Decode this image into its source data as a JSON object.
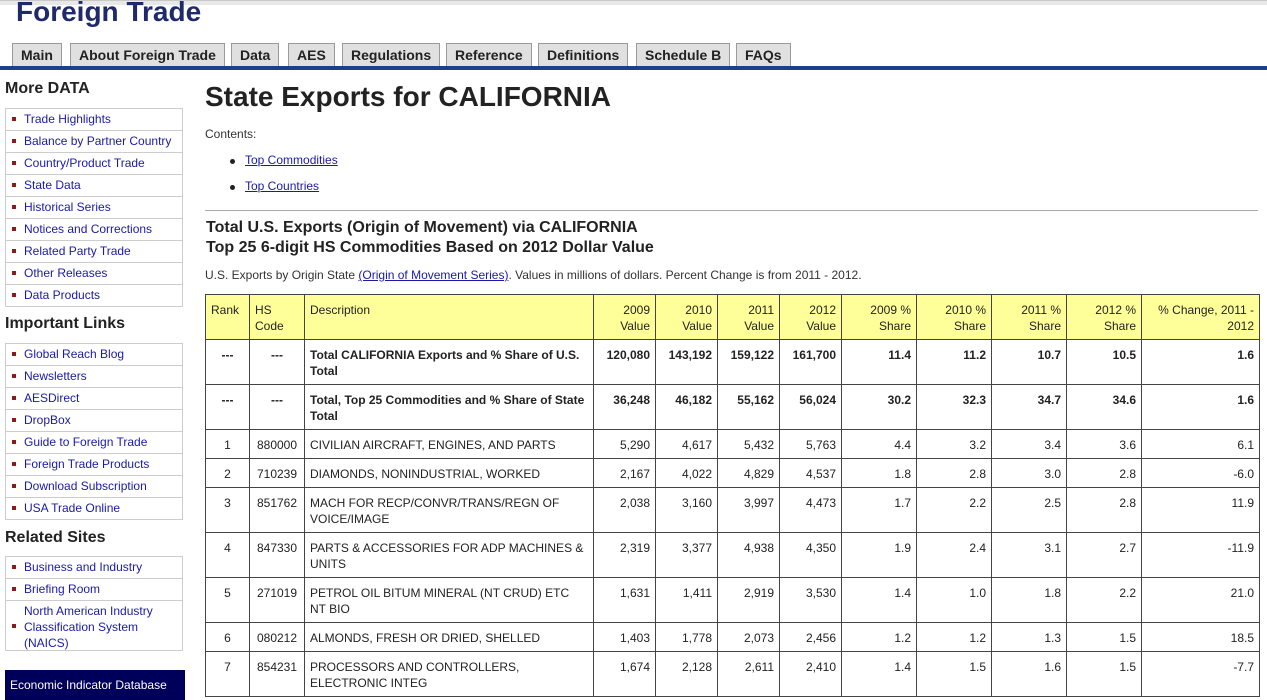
{
  "site": {
    "title": "Foreign Trade",
    "tabs": [
      "Main",
      "About Foreign Trade",
      "Data",
      "AES",
      "Regulations",
      "Reference",
      "Definitions",
      "Schedule B",
      "FAQs"
    ]
  },
  "sidebar": {
    "sections": [
      {
        "heading": "More DATA",
        "items": [
          "Trade Highlights",
          "Balance by Partner Country",
          "Country/Product Trade",
          "State Data",
          "Historical Series",
          "Notices and Corrections",
          "Related Party Trade",
          "Other Releases",
          "Data Products"
        ]
      },
      {
        "heading": "Important Links",
        "items": [
          "Global Reach Blog",
          "Newsletters",
          "AESDirect",
          "DropBox",
          "Guide to Foreign Trade",
          "Foreign Trade Products",
          "Download Subscription",
          "USA Trade Online"
        ]
      },
      {
        "heading": "Related Sites",
        "items": [
          "Business and Industry",
          "Briefing Room",
          "North American Industry Classification System (NAICS)"
        ]
      }
    ],
    "econ_box": "Economic Indicator Database"
  },
  "main": {
    "title": "State Exports for CALIFORNIA",
    "contents_label": "Contents:",
    "toc": [
      "Top Commodities",
      "Top Countries"
    ],
    "section_title_line1": "Total U.S. Exports (Origin of Movement) via CALIFORNIA",
    "section_title_line2": "Top 25 6-digit HS Commodities Based on 2012 Dollar Value",
    "subtext_before": "U.S. Exports by Origin State ",
    "subtext_link": "(Origin of Movement Series)",
    "subtext_after": ". Values in millions of dollars. Percent Change is from 2011 - 2012."
  },
  "table": {
    "headers": [
      "Rank",
      "HS Code",
      "Description",
      "2009 Value",
      "2010 Value",
      "2011 Value",
      "2012 Value",
      "2009 % Share",
      "2010 % Share",
      "2011 % Share",
      "2012 % Share",
      "% Change, 2011 - 2012"
    ],
    "rows": [
      [
        "---",
        "---",
        "Total CALIFORNIA Exports and % Share of U.S. Total",
        "120,080",
        "143,192",
        "159,122",
        "161,700",
        "11.4",
        "11.2",
        "10.7",
        "10.5",
        "1.6"
      ],
      [
        "---",
        "---",
        "Total, Top 25 Commodities and % Share of State Total",
        "36,248",
        "46,182",
        "55,162",
        "56,024",
        "30.2",
        "32.3",
        "34.7",
        "34.6",
        "1.6"
      ],
      [
        "1",
        "880000",
        "CIVILIAN AIRCRAFT, ENGINES, AND PARTS",
        "5,290",
        "4,617",
        "5,432",
        "5,763",
        "4.4",
        "3.2",
        "3.4",
        "3.6",
        "6.1"
      ],
      [
        "2",
        "710239",
        "DIAMONDS, NONINDUSTRIAL, WORKED",
        "2,167",
        "4,022",
        "4,829",
        "4,537",
        "1.8",
        "2.8",
        "3.0",
        "2.8",
        "-6.0"
      ],
      [
        "3",
        "851762",
        "MACH FOR RECP/CONVR/TRANS/REGN OF VOICE/IMAGE",
        "2,038",
        "3,160",
        "3,997",
        "4,473",
        "1.7",
        "2.2",
        "2.5",
        "2.8",
        "11.9"
      ],
      [
        "4",
        "847330",
        "PARTS & ACCESSORIES FOR ADP MACHINES & UNITS",
        "2,319",
        "3,377",
        "4,938",
        "4,350",
        "1.9",
        "2.4",
        "3.1",
        "2.7",
        "-11.9"
      ],
      [
        "5",
        "271019",
        "PETROL OIL BITUM MINERAL (NT CRUD) ETC NT BIO",
        "1,631",
        "1,411",
        "2,919",
        "3,530",
        "1.4",
        "1.0",
        "1.8",
        "2.2",
        "21.0"
      ],
      [
        "6",
        "080212",
        "ALMONDS, FRESH OR DRIED, SHELLED",
        "1,403",
        "1,778",
        "2,073",
        "2,456",
        "1.2",
        "1.2",
        "1.3",
        "1.5",
        "18.5"
      ],
      [
        "7",
        "854231",
        "PROCESSORS AND CONTROLLERS, ELECTRONIC INTEG",
        "1,674",
        "2,128",
        "2,611",
        "2,410",
        "1.4",
        "1.5",
        "1.6",
        "1.5",
        "-7.7"
      ]
    ]
  }
}
